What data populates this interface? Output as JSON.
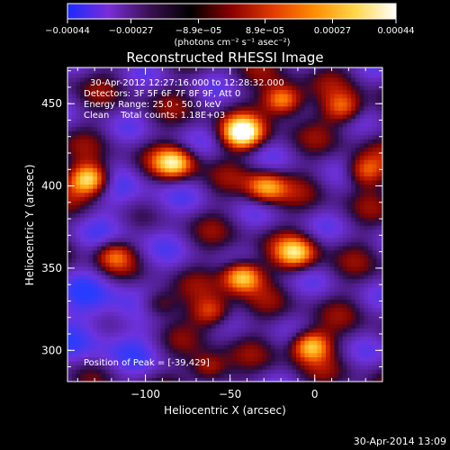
{
  "chart_data": {
    "type": "heatmap",
    "title": "Reconstructed RHESSI Image",
    "xlabel": "Heliocentric X (arcsec)",
    "ylabel": "Heliocentric Y (arcsec)",
    "xlim": [
      -146,
      40
    ],
    "ylim": [
      281,
      472
    ],
    "x_ticks": [
      {
        "value": -100,
        "label": "−100"
      },
      {
        "value": -50,
        "label": "−50"
      },
      {
        "value": 0,
        "label": "0"
      }
    ],
    "y_ticks": [
      {
        "value": 300,
        "label": "300"
      },
      {
        "value": 350,
        "label": "350"
      },
      {
        "value": 400,
        "label": "400"
      },
      {
        "value": 450,
        "label": "450"
      }
    ],
    "colorbar": {
      "min": -0.00044,
      "max": 0.00044,
      "ticks": [
        {
          "value": -0.00044,
          "label": "−0.00044"
        },
        {
          "value": -0.00027,
          "label": "−0.00027"
        },
        {
          "value": -8.9e-05,
          "label": "−8.9e−05"
        },
        {
          "value": 8.9e-05,
          "label": "8.9e−05"
        },
        {
          "value": 0.00027,
          "label": "0.00027"
        },
        {
          "value": 0.00044,
          "label": "0.00044"
        }
      ],
      "unit_label": "(photons cm⁻² s⁻¹ asec⁻²)",
      "colormap": [
        "#1a2aff",
        "#7a2dd8",
        "#3a1050",
        "#000000",
        "#8b0000",
        "#e23b00",
        "#ff8c00",
        "#ffd64a",
        "#ffffff"
      ]
    },
    "annotations": [
      "30-Apr-2012 12:27:16.000 to 12:28:32.000",
      "Detectors: 3F 5F 6F 7F 8F 9F, Att 0",
      "Energy Range: 25.0 - 50.0 keV",
      "Clean    Total counts: 1.18E+03",
      "Position of Peak = [-39,429]"
    ],
    "peak": {
      "x": -39,
      "y": 429
    },
    "bright_sources": [
      {
        "x": -134,
        "y": 403,
        "level": 0.95
      },
      {
        "x": -84,
        "y": 413,
        "level": 0.8
      },
      {
        "x": -44,
        "y": 431,
        "level": 1.0
      },
      {
        "x": -20,
        "y": 451,
        "level": 0.85
      },
      {
        "x": -30,
        "y": 398,
        "level": 0.7
      },
      {
        "x": -44,
        "y": 344,
        "level": 0.95
      },
      {
        "x": -12,
        "y": 358,
        "level": 0.7
      },
      {
        "x": -4,
        "y": 302,
        "level": 0.85
      },
      {
        "x": -120,
        "y": 357,
        "level": 0.55
      },
      {
        "x": -62,
        "y": 322,
        "level": 0.6
      },
      {
        "x": 16,
        "y": 446,
        "level": 0.6
      },
      {
        "x": 28,
        "y": 408,
        "level": 0.55
      },
      {
        "x": -94,
        "y": 327,
        "level": 0.5
      },
      {
        "x": -64,
        "y": 288,
        "level": 0.55
      }
    ]
  },
  "footer": {
    "timestamp": "30-Apr-2014 13:09"
  }
}
